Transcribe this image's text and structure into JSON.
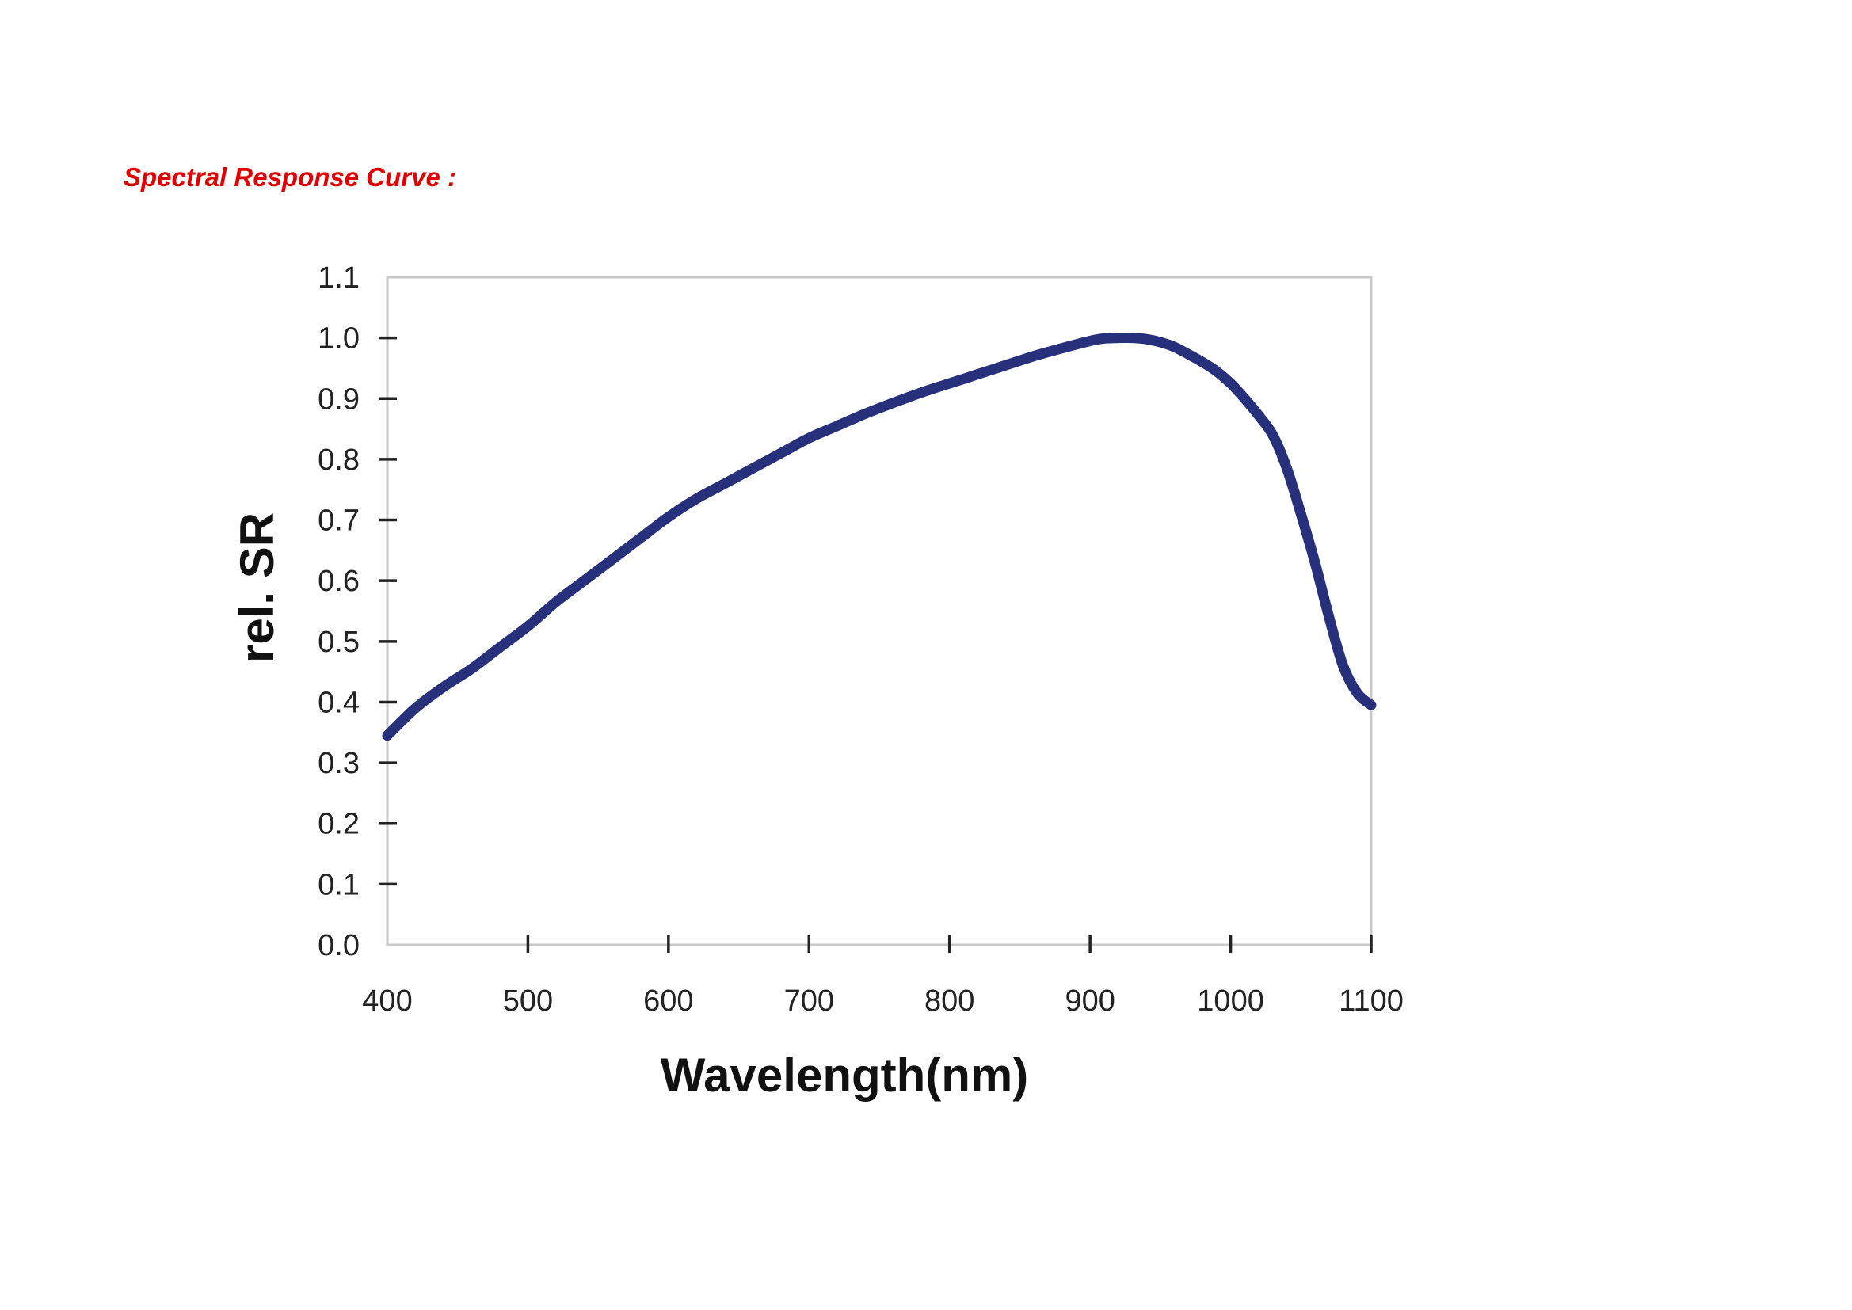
{
  "page": {
    "title": "Spectral Response Curve :",
    "title_color": "#e00000"
  },
  "chart_data": {
    "type": "line",
    "title": "",
    "xlabel": "Wavelength(nm)",
    "ylabel": "rel. SR",
    "xlim": [
      400,
      1100
    ],
    "ylim": [
      0.0,
      1.1
    ],
    "x_ticks": [
      400,
      500,
      600,
      700,
      800,
      900,
      1000,
      1100
    ],
    "x_tick_labels": [
      "400",
      "500",
      "600",
      "700",
      "800",
      "900",
      "1000",
      "1100"
    ],
    "y_ticks": [
      0.0,
      0.1,
      0.2,
      0.3,
      0.4,
      0.5,
      0.6,
      0.7,
      0.8,
      0.9,
      1.0,
      1.1
    ],
    "y_tick_labels": [
      "0.0",
      "0.1",
      "0.2",
      "0.3",
      "0.4",
      "0.5",
      "0.6",
      "0.7",
      "0.8",
      "0.9",
      "1.0",
      "1.1"
    ],
    "grid": false,
    "legend": "none",
    "line_color": "#27307a",
    "frame_color": "#c8c8c8",
    "tick_color": "#222222",
    "series": [
      {
        "x": [
          400,
          420,
          440,
          460,
          480,
          500,
          520,
          540,
          560,
          580,
          600,
          620,
          640,
          660,
          680,
          700,
          720,
          740,
          760,
          780,
          800,
          820,
          840,
          860,
          880,
          900,
          910,
          920,
          930,
          940,
          950,
          960,
          970,
          980,
          990,
          1000,
          1010,
          1020,
          1030,
          1040,
          1050,
          1060,
          1070,
          1080,
          1090,
          1100
        ],
        "y": [
          0.345,
          0.39,
          0.425,
          0.455,
          0.49,
          0.525,
          0.565,
          0.6,
          0.635,
          0.67,
          0.705,
          0.735,
          0.76,
          0.785,
          0.81,
          0.835,
          0.855,
          0.875,
          0.893,
          0.91,
          0.925,
          0.94,
          0.955,
          0.97,
          0.983,
          0.995,
          0.999,
          1.0,
          1.0,
          0.998,
          0.993,
          0.985,
          0.973,
          0.96,
          0.945,
          0.925,
          0.9,
          0.872,
          0.84,
          0.785,
          0.71,
          0.63,
          0.54,
          0.46,
          0.415,
          0.395
        ]
      }
    ]
  }
}
